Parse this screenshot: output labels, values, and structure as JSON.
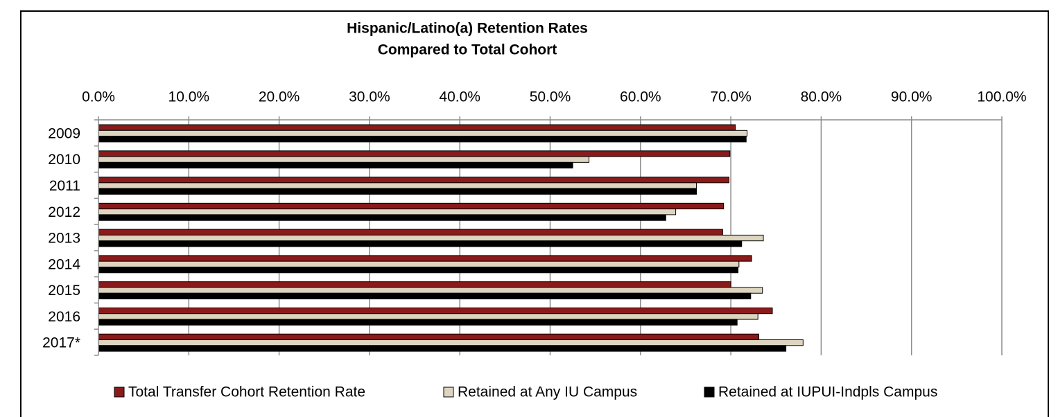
{
  "chart_data": {
    "type": "hbar",
    "title": "Hispanic/Latino(a) Retention Rates",
    "subtitle": "Compared to Total Cohort",
    "categories": [
      "2009",
      "2010",
      "2011",
      "2012",
      "2013",
      "2014",
      "2015",
      "2016",
      "2017*"
    ],
    "series": [
      {
        "name": "Total Transfer Cohort Retention Rate",
        "color": "#8b1a1a",
        "values": [
          70.5,
          69.9,
          69.8,
          69.2,
          69.1,
          72.3,
          70.0,
          74.6,
          73.1
        ]
      },
      {
        "name": "Retained at Any IU Campus",
        "color": "#ddd5c0",
        "values": [
          71.8,
          54.3,
          66.2,
          63.9,
          73.6,
          70.9,
          73.5,
          73.0,
          78.0
        ]
      },
      {
        "name": "Retained at IUPUI-Indpls Campus",
        "color": "#000000",
        "values": [
          71.7,
          52.5,
          66.2,
          62.8,
          71.2,
          70.8,
          72.2,
          70.7,
          76.1
        ]
      }
    ],
    "xlim": [
      0,
      100
    ],
    "xticks": [
      {
        "value": 0,
        "label": "0.0%"
      },
      {
        "value": 10,
        "label": "10.0%"
      },
      {
        "value": 20,
        "label": "20.0%"
      },
      {
        "value": 30,
        "label": "30.0%"
      },
      {
        "value": 40,
        "label": "40.0%"
      },
      {
        "value": 50,
        "label": "50.0%"
      },
      {
        "value": 60,
        "label": "60.0%"
      },
      {
        "value": 70,
        "label": "70.0%"
      },
      {
        "value": 80,
        "label": "80.0%"
      },
      {
        "value": 90,
        "label": "90.0%"
      },
      {
        "value": 100,
        "label": "100.0%"
      }
    ],
    "grid": true,
    "legend": "bottom"
  }
}
